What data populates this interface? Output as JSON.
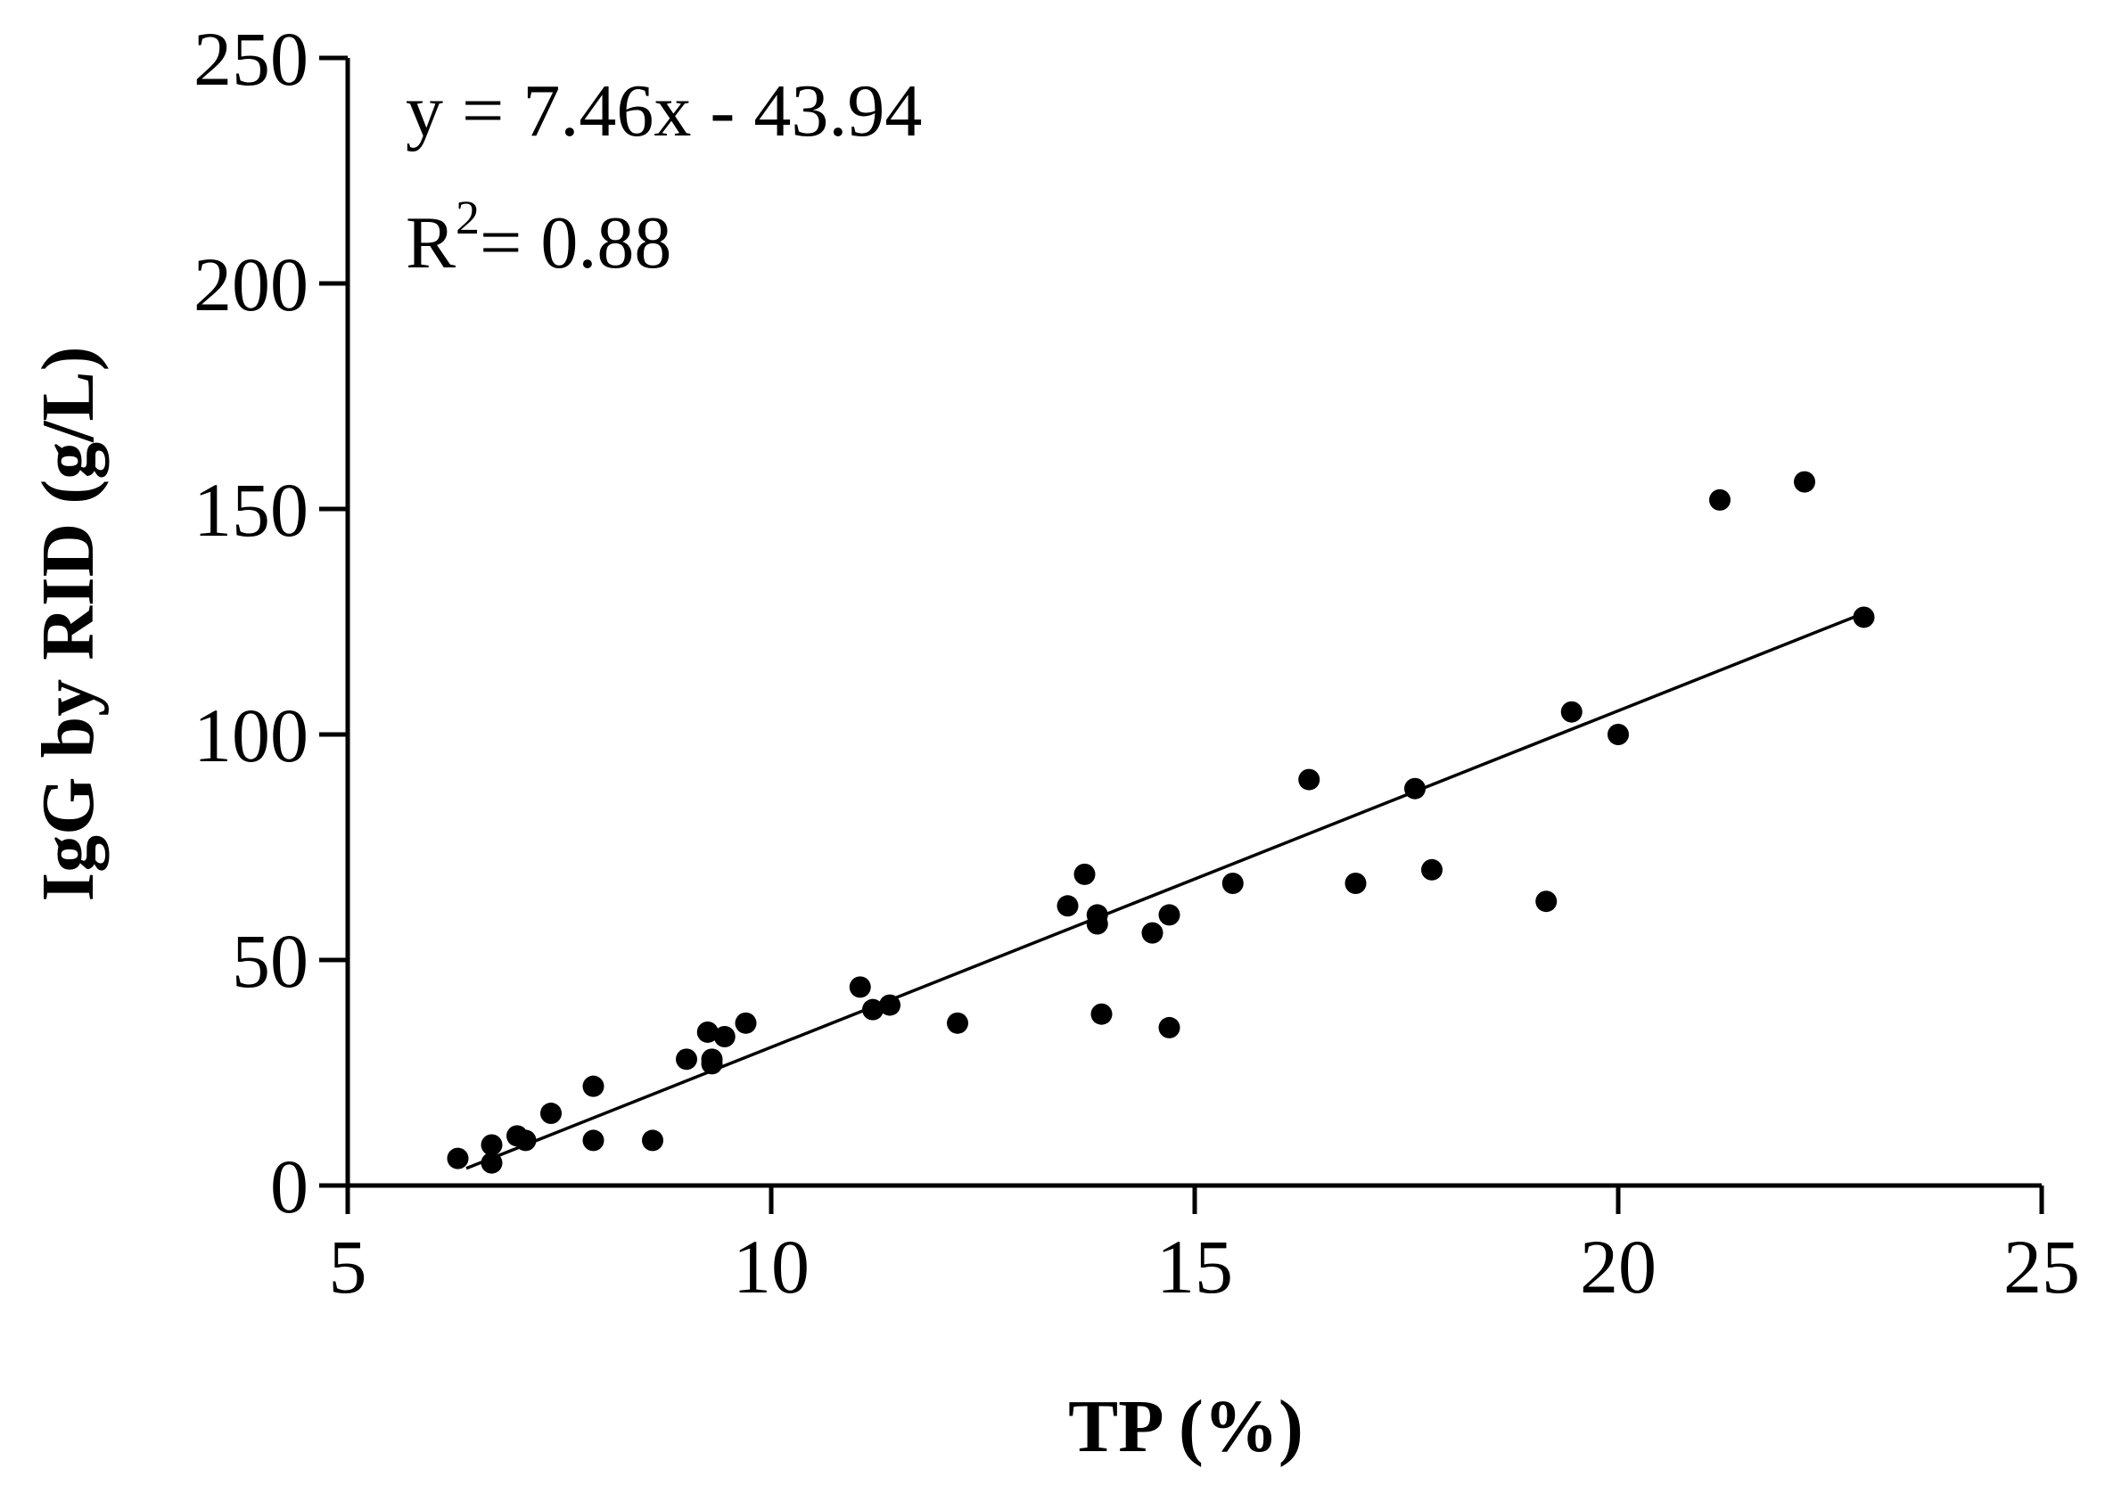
{
  "chart_data": {
    "type": "scatter",
    "xlabel": "TP (%)",
    "ylabel": "IgG by RID (g/L)",
    "xlim": [
      5,
      25
    ],
    "ylim": [
      0,
      250
    ],
    "xticks": [
      5,
      10,
      15,
      20,
      25
    ],
    "yticks": [
      0,
      50,
      100,
      150,
      200,
      250
    ],
    "grid": false,
    "legend": "none",
    "equation_text": "y = 7.46x - 43.94",
    "r2_label": "R",
    "r2_sup": "2",
    "r2_value": "= 0.88",
    "fit": {
      "slope": 7.46,
      "intercept": -43.94,
      "x_range": [
        6.4,
        22.8
      ]
    },
    "points": [
      [
        6.3,
        6
      ],
      [
        6.7,
        9
      ],
      [
        6.7,
        5
      ],
      [
        7.0,
        11
      ],
      [
        7.1,
        10
      ],
      [
        7.4,
        16
      ],
      [
        7.9,
        22
      ],
      [
        7.9,
        10
      ],
      [
        8.6,
        10
      ],
      [
        9.0,
        28
      ],
      [
        9.25,
        34
      ],
      [
        9.3,
        28
      ],
      [
        9.3,
        27
      ],
      [
        9.45,
        33
      ],
      [
        9.7,
        36
      ],
      [
        11.05,
        44
      ],
      [
        11.2,
        39
      ],
      [
        11.4,
        40
      ],
      [
        12.2,
        36
      ],
      [
        13.5,
        62
      ],
      [
        13.7,
        69
      ],
      [
        13.85,
        60
      ],
      [
        13.85,
        58
      ],
      [
        13.9,
        38
      ],
      [
        14.5,
        56
      ],
      [
        14.7,
        60
      ],
      [
        14.7,
        35
      ],
      [
        15.45,
        67
      ],
      [
        16.35,
        90
      ],
      [
        16.9,
        67
      ],
      [
        17.6,
        88
      ],
      [
        17.8,
        70
      ],
      [
        19.15,
        63
      ],
      [
        19.45,
        105
      ],
      [
        20.0,
        100
      ],
      [
        21.2,
        152
      ],
      [
        22.2,
        156
      ],
      [
        22.9,
        126
      ]
    ]
  }
}
